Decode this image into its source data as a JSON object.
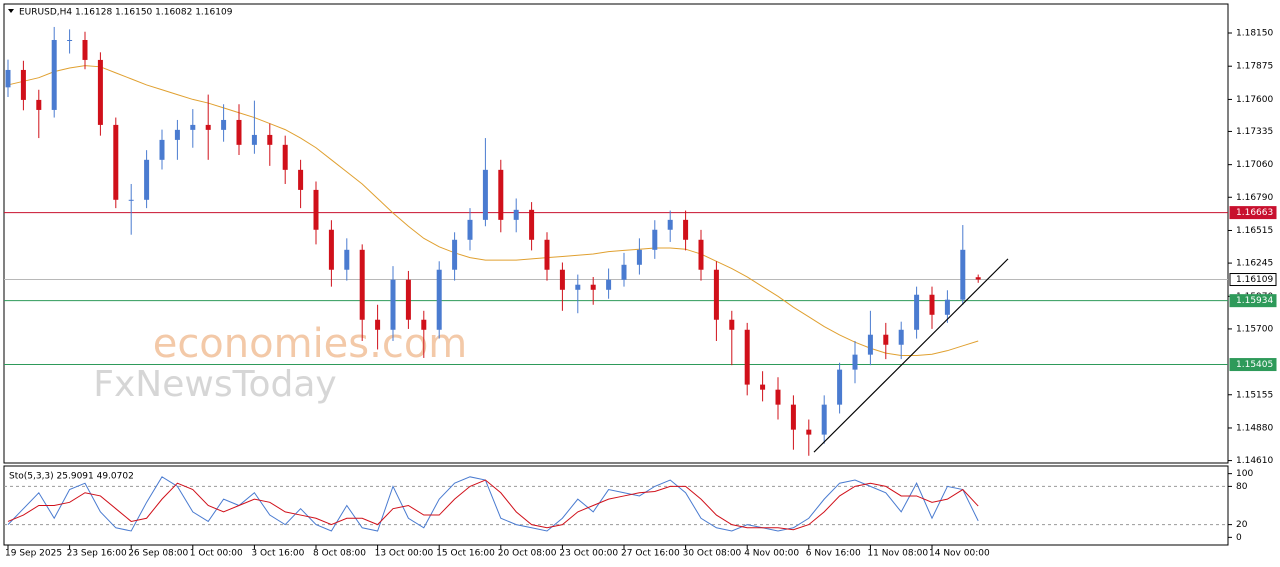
{
  "chart_data": [
    {
      "type": "candlestick",
      "title": "EURUSD,H4  1.16128 1.16150 1.16082 1.16109",
      "categories": [
        "19 Sep 2025",
        null,
        null,
        null,
        "23 Sep 16:00",
        null,
        null,
        null,
        "26 Sep 08:00",
        null,
        null,
        null,
        "1 Oct 00:00",
        null,
        null,
        null,
        "3 Oct 16:00",
        null,
        null,
        null,
        "8 Oct 08:00",
        null,
        null,
        null,
        "13 Oct 00:00",
        null,
        null,
        null,
        "15 Oct 16:00",
        null,
        null,
        null,
        "20 Oct 08:00",
        null,
        null,
        null,
        "23 Oct 00:00",
        null,
        null,
        null,
        "27 Oct 16:00",
        null,
        null,
        null,
        "30 Oct 08:00",
        null,
        null,
        null,
        "4 Nov 00:00",
        null,
        null,
        null,
        "6 Nov 16:00",
        null,
        null,
        null,
        "11 Nov 08:00",
        null,
        null,
        null,
        "14 Nov 00:00",
        null,
        null,
        null
      ],
      "candles": [
        [
          1.177,
          1.1793,
          1.1762,
          1.17844
        ],
        [
          1.17844,
          1.1792,
          1.1751,
          1.17596
        ],
        [
          1.17596,
          1.1768,
          1.1728,
          1.17513
        ],
        [
          1.17513,
          1.182,
          1.1745,
          1.18092
        ],
        [
          1.18092,
          1.1818,
          1.1798,
          1.18092
        ],
        [
          1.18092,
          1.1816,
          1.1785,
          1.17927
        ],
        [
          1.17927,
          1.1799,
          1.173,
          1.17389
        ],
        [
          1.17389,
          1.1745,
          1.167,
          1.16769
        ],
        [
          1.16769,
          1.169,
          1.1648,
          1.16769
        ],
        [
          1.16769,
          1.1718,
          1.167,
          1.171
        ],
        [
          1.171,
          1.1735,
          1.1702,
          1.17265
        ],
        [
          1.17265,
          1.1743,
          1.171,
          1.17348
        ],
        [
          1.17348,
          1.1752,
          1.172,
          1.17389
        ],
        [
          1.17389,
          1.1764,
          1.171,
          1.17348
        ],
        [
          1.17348,
          1.1756,
          1.1725,
          1.1743
        ],
        [
          1.1743,
          1.1756,
          1.1714,
          1.17224
        ],
        [
          1.17224,
          1.1759,
          1.1715,
          1.17306
        ],
        [
          1.17306,
          1.174,
          1.1705,
          1.17224
        ],
        [
          1.17224,
          1.173,
          1.169,
          1.17017
        ],
        [
          1.17017,
          1.171,
          1.167,
          1.16851
        ],
        [
          1.16851,
          1.1692,
          1.164,
          1.16521
        ],
        [
          1.16521,
          1.166,
          1.1605,
          1.1619
        ],
        [
          1.1619,
          1.1645,
          1.161,
          1.16355
        ],
        [
          1.16355,
          1.164,
          1.156,
          1.15776
        ],
        [
          1.15776,
          1.159,
          1.1553,
          1.15693
        ],
        [
          1.15693,
          1.1622,
          1.156,
          1.16107
        ],
        [
          1.16107,
          1.1618,
          1.157,
          1.15776
        ],
        [
          1.15776,
          1.1585,
          1.1546,
          1.15693
        ],
        [
          1.15693,
          1.1626,
          1.1562,
          1.1619
        ],
        [
          1.1619,
          1.165,
          1.161,
          1.16438
        ],
        [
          1.16438,
          1.167,
          1.1635,
          1.16603
        ],
        [
          1.16603,
          1.1728,
          1.1655,
          1.17017
        ],
        [
          1.17017,
          1.171,
          1.165,
          1.16603
        ],
        [
          1.16603,
          1.1678,
          1.165,
          1.16686
        ],
        [
          1.16686,
          1.1675,
          1.1635,
          1.16438
        ],
        [
          1.16438,
          1.165,
          1.161,
          1.1619
        ],
        [
          1.1619,
          1.1625,
          1.1585,
          1.16024
        ],
        [
          1.16024,
          1.1615,
          1.1583,
          1.16066
        ],
        [
          1.16066,
          1.1613,
          1.159,
          1.16024
        ],
        [
          1.16024,
          1.162,
          1.1595,
          1.16107
        ],
        [
          1.16107,
          1.1633,
          1.1605,
          1.16231
        ],
        [
          1.16231,
          1.1645,
          1.1615,
          1.16355
        ],
        [
          1.16355,
          1.166,
          1.1628,
          1.16521
        ],
        [
          1.16521,
          1.1668,
          1.1642,
          1.16603
        ],
        [
          1.16603,
          1.1668,
          1.1635,
          1.16438
        ],
        [
          1.16438,
          1.1652,
          1.161,
          1.1619
        ],
        [
          1.1619,
          1.1626,
          1.156,
          1.15776
        ],
        [
          1.15776,
          1.1585,
          1.154,
          1.15693
        ],
        [
          1.15693,
          1.1575,
          1.1515,
          1.15239
        ],
        [
          1.15239,
          1.1535,
          1.151,
          1.15197
        ],
        [
          1.15197,
          1.153,
          1.1495,
          1.15073
        ],
        [
          1.15073,
          1.1515,
          1.147,
          1.14866
        ],
        [
          1.14866,
          1.1495,
          1.1465,
          1.14825
        ],
        [
          1.14825,
          1.1515,
          1.1475,
          1.15073
        ],
        [
          1.15073,
          1.1542,
          1.15,
          1.15363
        ],
        [
          1.15363,
          1.156,
          1.1525,
          1.15487
        ],
        [
          1.15487,
          1.1585,
          1.154,
          1.15652
        ],
        [
          1.15652,
          1.1575,
          1.1545,
          1.15569
        ],
        [
          1.15569,
          1.1576,
          1.1545,
          1.15693
        ],
        [
          1.15693,
          1.1605,
          1.1562,
          1.15983
        ],
        [
          1.15983,
          1.1605,
          1.157,
          1.15817
        ],
        [
          1.15817,
          1.1602,
          1.1575,
          1.15942
        ],
        [
          1.15942,
          1.1656,
          1.159,
          1.16355
        ],
        [
          1.16128,
          1.1615,
          1.16082,
          1.16109
        ]
      ],
      "up_color": "#4a7bd0",
      "down_color": "#d0101a",
      "ma": {
        "color": "#e0a030",
        "values": [
          1.1772,
          1.1775,
          1.1778,
          1.1783,
          1.1786,
          1.1788,
          1.1787,
          1.1782,
          1.1777,
          1.1772,
          1.1768,
          1.1764,
          1.176,
          1.1757,
          1.1753,
          1.1749,
          1.1745,
          1.174,
          1.1735,
          1.1728,
          1.172,
          1.171,
          1.17,
          1.169,
          1.1678,
          1.1666,
          1.1655,
          1.1645,
          1.1638,
          1.1633,
          1.1629,
          1.1627,
          1.1627,
          1.1627,
          1.1628,
          1.1629,
          1.163,
          1.1631,
          1.1632,
          1.1634,
          1.1635,
          1.1636,
          1.1637,
          1.1637,
          1.1636,
          1.1632,
          1.1626,
          1.162,
          1.1613,
          1.1605,
          1.1597,
          1.1588,
          1.158,
          1.1572,
          1.1565,
          1.1559,
          1.1554,
          1.155,
          1.1548,
          1.1548,
          1.1549,
          1.1552,
          1.1556,
          1.156
        ]
      },
      "levels": [
        {
          "value": 1.16663,
          "color": "#c8102e"
        },
        {
          "value": 1.15934,
          "color": "#2e9a5a"
        },
        {
          "value": 1.15405,
          "color": "#2e9a5a"
        },
        {
          "value": 1.16109,
          "color": "#b8b8b8"
        }
      ],
      "trendline": {
        "color": "#000000",
        "values": [
          1.1468,
          1.1628
        ]
      },
      "ylim": [
        1.1459,
        1.1839
      ],
      "yticks": [
        {
          "value": 1.1815,
          "label": "1.18150"
        },
        1.17875,
        {
          "value": 1.176,
          "label": "1.17600"
        },
        1.17335,
        {
          "value": 1.1706,
          "label": "1.17060"
        },
        {
          "value": 1.1679,
          "label": "1.16790"
        },
        1.16515,
        1.16245,
        {
          "value": 1.1597,
          "label": "1.15970"
        },
        {
          "value": 1.157,
          "label": "1.15700"
        },
        1.15155,
        {
          "value": 1.1488,
          "label": "1.14880"
        },
        {
          "value": 1.1461,
          "label": "1.14610"
        }
      ],
      "watermark": [
        "economies.com",
        "FxNewsToday"
      ]
    },
    {
      "type": "line",
      "title": "Sto(5,3,3) 25.9091 49.0702",
      "series": [
        {
          "color": "#4a7bd0",
          "values": [
            20,
            45,
            70,
            30,
            75,
            85,
            40,
            15,
            10,
            55,
            95,
            80,
            40,
            25,
            60,
            50,
            70,
            35,
            20,
            45,
            20,
            10,
            50,
            15,
            10,
            80,
            30,
            15,
            60,
            85,
            95,
            90,
            30,
            20,
            15,
            10,
            30,
            60,
            40,
            75,
            70,
            65,
            80,
            90,
            70,
            30,
            15,
            10,
            20,
            15,
            10,
            15,
            30,
            60,
            85,
            90,
            80,
            70,
            40,
            85,
            30,
            80,
            75,
            25.9091
          ]
        },
        {
          "color": "#d0101a",
          "values": [
            25,
            35,
            50,
            50,
            55,
            70,
            65,
            45,
            25,
            30,
            60,
            85,
            75,
            50,
            40,
            50,
            60,
            55,
            40,
            35,
            30,
            20,
            30,
            30,
            20,
            45,
            50,
            35,
            35,
            60,
            80,
            90,
            70,
            40,
            20,
            15,
            20,
            40,
            50,
            60,
            65,
            70,
            72,
            80,
            80,
            60,
            35,
            20,
            15,
            15,
            15,
            12,
            20,
            40,
            65,
            80,
            85,
            80,
            65,
            65,
            55,
            60,
            75,
            49.0702
          ]
        }
      ],
      "ylim": [
        -12,
        112
      ],
      "yticks": [
        100,
        80,
        20,
        0
      ],
      "levels": [
        80,
        20
      ]
    }
  ]
}
